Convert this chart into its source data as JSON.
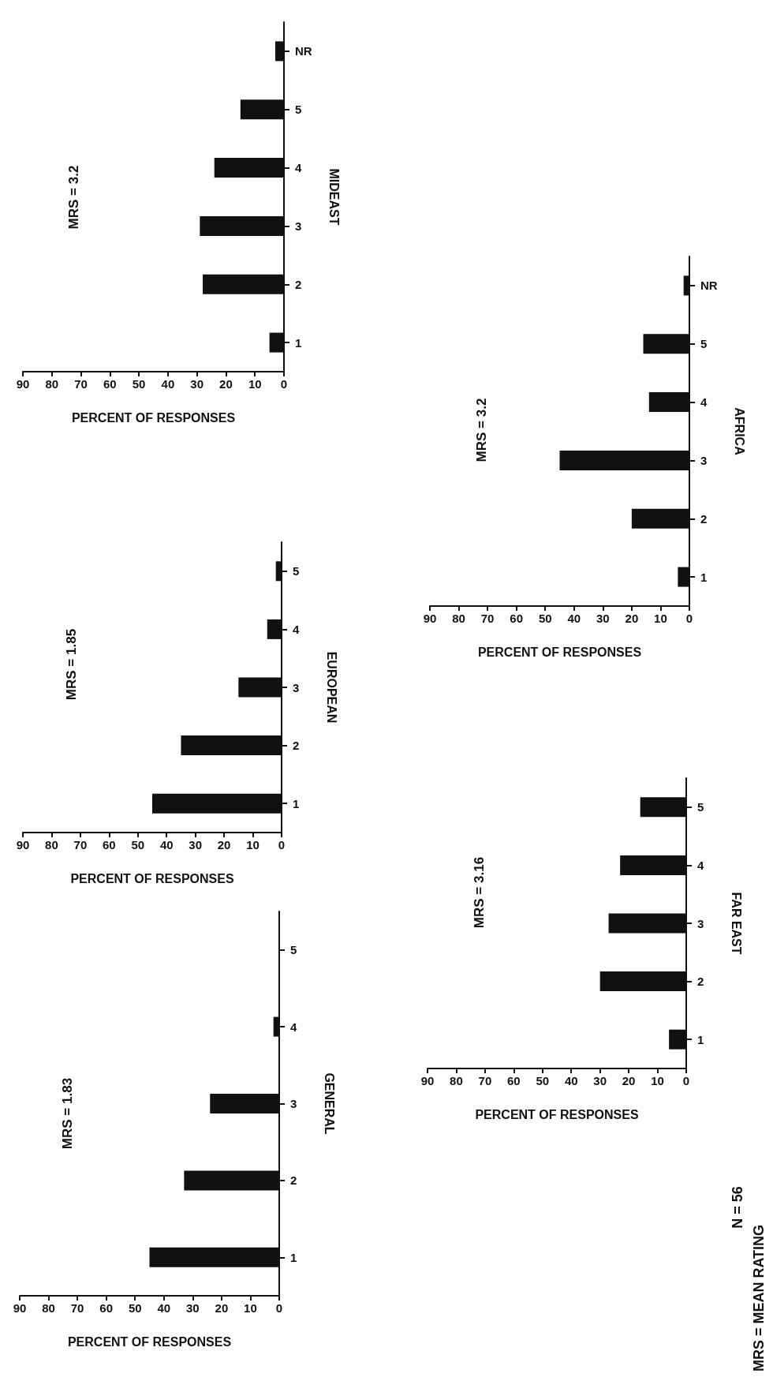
{
  "chart_data": [
    {
      "type": "bar",
      "orientation": "horizontal",
      "ylabel": "MIDEAST",
      "xlabel": "PERCENT OF RESPONSES",
      "annotations": [
        "MRS = 3.2"
      ],
      "categories": [
        "NR",
        "5",
        "4",
        "3",
        "2",
        "1"
      ],
      "values": [
        3,
        15,
        24,
        29,
        28,
        5
      ],
      "color": "#111111",
      "xlim": [
        90,
        0
      ],
      "xticks": [
        90,
        80,
        70,
        60,
        50,
        40,
        30,
        20,
        10,
        0
      ]
    },
    {
      "type": "bar",
      "orientation": "horizontal",
      "ylabel": "EUROPEAN",
      "xlabel": "PERCENT OF RESPONSES",
      "annotations": [
        "MRS = 1.85"
      ],
      "categories": [
        "5",
        "4",
        "3",
        "2",
        "1"
      ],
      "values": [
        2,
        5,
        15,
        35,
        45
      ],
      "color": "#111111",
      "xlim": [
        90,
        0
      ],
      "xticks": [
        90,
        80,
        70,
        60,
        50,
        40,
        30,
        20,
        10,
        0
      ]
    },
    {
      "type": "bar",
      "orientation": "horizontal",
      "ylabel": "GENERAL",
      "xlabel": "PERCENT OF RESPONSES",
      "annotations": [
        "MRS = 1.83"
      ],
      "categories": [
        "5",
        "4",
        "3",
        "2",
        "1"
      ],
      "values": [
        0,
        2,
        24,
        33,
        45
      ],
      "color": "#111111",
      "xlim": [
        90,
        0
      ],
      "xticks": [
        90,
        80,
        70,
        60,
        50,
        40,
        30,
        20,
        10,
        0
      ]
    },
    {
      "type": "bar",
      "orientation": "horizontal",
      "ylabel": "AFRICA",
      "xlabel": "PERCENT OF RESPONSES",
      "annotations": [
        "MRS = 3.2"
      ],
      "categories": [
        "NR",
        "5",
        "4",
        "3",
        "2",
        "1"
      ],
      "values": [
        2,
        16,
        14,
        45,
        20,
        4
      ],
      "color": "#111111",
      "xlim": [
        90,
        0
      ],
      "xticks": [
        90,
        80,
        70,
        60,
        50,
        40,
        30,
        20,
        10,
        0
      ]
    },
    {
      "type": "bar",
      "orientation": "horizontal",
      "ylabel": "FAR EAST",
      "xlabel": "PERCENT OF RESPONSES",
      "annotations": [
        "MRS = 3.16"
      ],
      "categories": [
        "5",
        "4",
        "3",
        "2",
        "1"
      ],
      "values": [
        16,
        23,
        27,
        30,
        6
      ],
      "color": "#111111",
      "xlim": [
        90,
        0
      ],
      "xticks": [
        90,
        80,
        70,
        60,
        50,
        40,
        30,
        20,
        10,
        0
      ]
    },
    {
      "type": "other",
      "annotations": [
        "N = 56",
        "MRS = MEAN RATING"
      ]
    }
  ]
}
